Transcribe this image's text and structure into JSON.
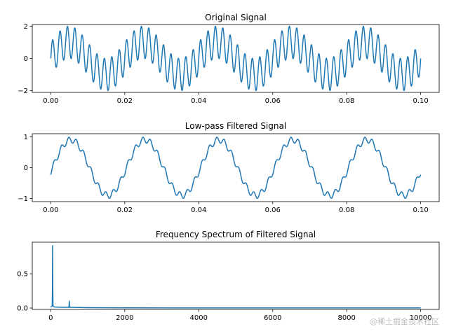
{
  "watermark": "@稀土掘金技术社区",
  "colors": {
    "line": "#1f77b4",
    "axis": "#000000"
  },
  "chart_data": [
    {
      "type": "line",
      "title": "Original Signal",
      "xlabel": "",
      "ylabel": "",
      "xlim": [
        -0.005,
        0.105
      ],
      "ylim": [
        -2.1,
        2.1
      ],
      "x_ticks": [
        0.0,
        0.02,
        0.04,
        0.06,
        0.08,
        0.1
      ],
      "x_tick_labels": [
        "0.00",
        "0.02",
        "0.04",
        "0.06",
        "0.08",
        "0.10"
      ],
      "y_ticks": [
        -2,
        0,
        2
      ],
      "y_tick_labels": [
        "−2",
        "0",
        "2"
      ],
      "series": [
        {
          "x_range": [
            0,
            0.1
          ],
          "samples": 2000,
          "components": [
            {
              "amplitude": 1.0,
              "frequency_hz": 50,
              "phase": 0
            },
            {
              "amplitude": 1.0,
              "frequency_hz": 500,
              "phase": 0
            }
          ]
        }
      ],
      "grid": false,
      "legend": "none"
    },
    {
      "type": "line",
      "title": "Low-pass Filtered Signal",
      "xlabel": "",
      "ylabel": "",
      "xlim": [
        -0.005,
        0.105
      ],
      "ylim": [
        -1.1,
        1.1
      ],
      "x_ticks": [
        0.0,
        0.02,
        0.04,
        0.06,
        0.08,
        0.1
      ],
      "x_tick_labels": [
        "0.00",
        "0.02",
        "0.04",
        "0.06",
        "0.08",
        "0.10"
      ],
      "y_ticks": [
        -1,
        0,
        1
      ],
      "y_tick_labels": [
        "−1",
        "0",
        "1"
      ],
      "series": [
        {
          "x_range": [
            0,
            0.1
          ],
          "samples": 2000,
          "components": [
            {
              "amplitude": 0.9,
              "frequency_hz": 50,
              "phase": -0.15
            },
            {
              "amplitude": 0.1,
              "frequency_hz": 500,
              "phase": -1.2
            }
          ],
          "offset": 0.0
        }
      ],
      "grid": false,
      "legend": "none"
    },
    {
      "type": "line",
      "title": "Frequency Spectrum of Filtered Signal",
      "xlabel": "",
      "ylabel": "",
      "xlim": [
        -500,
        10500
      ],
      "ylim": [
        -0.02,
        0.96
      ],
      "x_ticks": [
        0,
        2000,
        4000,
        6000,
        8000,
        10000
      ],
      "x_tick_labels": [
        "0",
        "2000",
        "4000",
        "6000",
        "8000",
        "10000"
      ],
      "y_ticks": [
        0.0,
        0.5
      ],
      "y_tick_labels": [
        "0.0",
        "0.5"
      ],
      "series": [
        {
          "x": [
            0,
            10,
            40,
            45,
            50,
            55,
            60,
            100,
            300,
            490,
            495,
            500,
            505,
            510,
            1000,
            2000,
            4000,
            6000,
            8000,
            10000
          ],
          "values": [
            0.01,
            0.02,
            0.03,
            0.3,
            0.91,
            0.3,
            0.03,
            0.015,
            0.01,
            0.01,
            0.04,
            0.1,
            0.04,
            0.01,
            0.005,
            0.003,
            0.002,
            0.002,
            0.002,
            0.002
          ]
        }
      ],
      "grid": false,
      "legend": "none"
    }
  ]
}
